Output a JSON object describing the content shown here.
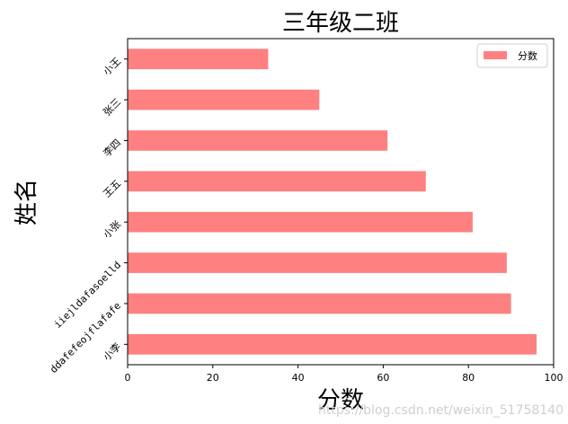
{
  "chart_data": {
    "type": "bar",
    "orientation": "horizontal",
    "title": "三年级二班",
    "xlabel": "分数",
    "ylabel": "姓名",
    "categories": [
      "小王",
      "张三",
      "李四",
      "王五",
      "小张",
      "iiejldafasoelld",
      "ddafefeojflafafe",
      "小李"
    ],
    "series": [
      {
        "name": "分数",
        "values": [
          33,
          45,
          61,
          70,
          81,
          89,
          90,
          96
        ]
      }
    ],
    "xlim": [
      0,
      100
    ],
    "xticks": [
      0,
      20,
      40,
      60,
      80,
      100
    ],
    "grid": false,
    "legend_position": "top-right",
    "bar_color": "#ff8080"
  },
  "watermark": "https://blog.csdn.net/weixin_51758140"
}
